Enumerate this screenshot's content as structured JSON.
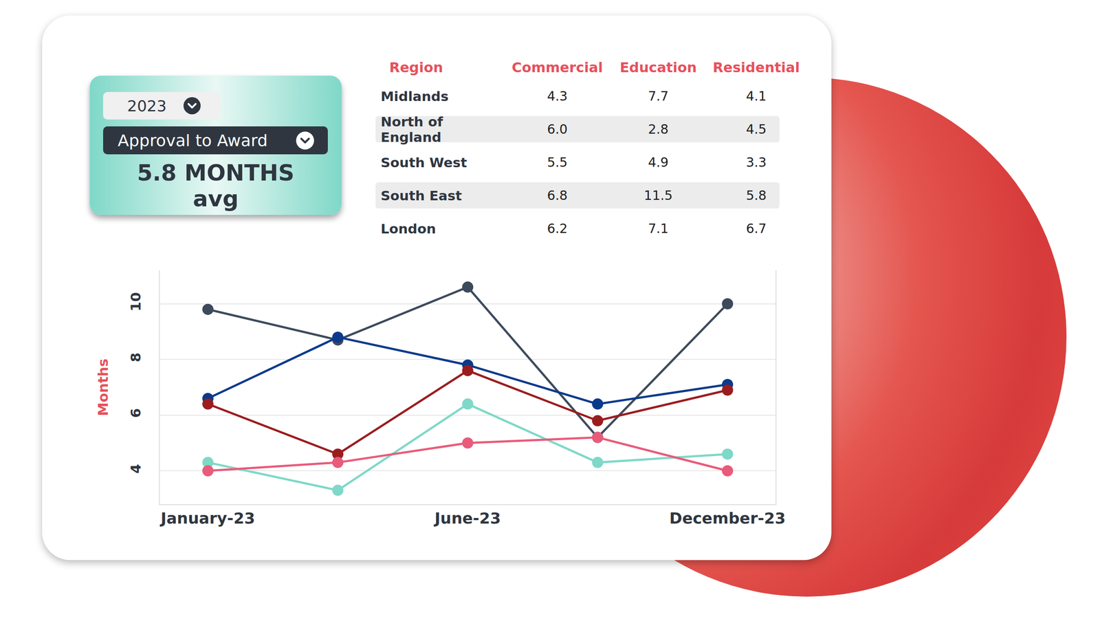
{
  "summary": {
    "year": "2023",
    "metric": "Approval to Award",
    "value": "5.8 MONTHS",
    "unit": "avg"
  },
  "table": {
    "headers": [
      "Region",
      "Commercial",
      "Education",
      "Residential"
    ],
    "rows": [
      [
        "Midlands",
        "4.3",
        "7.7",
        "4.1"
      ],
      [
        "North of England",
        "6.0",
        "2.8",
        "4.5"
      ],
      [
        "South West",
        "5.5",
        "4.9",
        "3.3"
      ],
      [
        "South East",
        "6.8",
        "11.5",
        "5.8"
      ],
      [
        "London",
        "6.2",
        "7.1",
        "6.7"
      ]
    ]
  },
  "chart_data": {
    "type": "line",
    "y_label": "Months",
    "categories": [
      "January-23",
      null,
      "June-23",
      null,
      "December-23"
    ],
    "series": [
      {
        "color": "#3d4a5c",
        "values": [
          9.8,
          8.7,
          10.6,
          5.2,
          10.0
        ]
      },
      {
        "color": "#0b3a8c",
        "values": [
          6.6,
          8.8,
          7.8,
          6.4,
          7.1
        ]
      },
      {
        "color": "#9b1c1f",
        "values": [
          6.4,
          4.6,
          7.6,
          5.8,
          6.9
        ]
      },
      {
        "color": "#7fd8c8",
        "values": [
          4.3,
          3.3,
          6.4,
          4.3,
          4.6
        ]
      },
      {
        "color": "#e95b7a",
        "values": [
          4.0,
          4.3,
          5.0,
          5.2,
          4.0
        ]
      }
    ],
    "ylim": [
      2.8,
      11.2
    ],
    "yticks": [
      4,
      6,
      8,
      10
    ],
    "grid": true,
    "marker": "circle"
  }
}
